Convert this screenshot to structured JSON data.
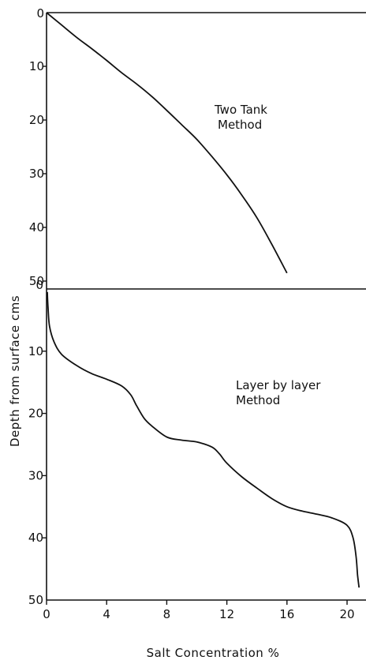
{
  "chart_data": [
    {
      "type": "line",
      "panel": "top",
      "annotation": [
        "Two Tank",
        "Method"
      ],
      "xlim": [
        0,
        21.5
      ],
      "ylim": [
        0,
        53
      ],
      "y_inverted": true,
      "yticks": [
        0,
        10,
        20,
        30,
        40,
        50
      ],
      "ytick_labels": [
        "0",
        "10",
        "20",
        "30",
        "40",
        "50"
      ],
      "series": [
        {
          "x": [
            0,
            1,
            2,
            3,
            4,
            5,
            6,
            7,
            8,
            9,
            10,
            11,
            12,
            13,
            14,
            15,
            16
          ],
          "y": [
            0,
            2.3,
            4.6,
            6.7,
            8.9,
            11.2,
            13.3,
            15.6,
            18.2,
            20.9,
            23.6,
            26.8,
            30.2,
            34.0,
            38.2,
            43.2,
            48.5
          ]
        }
      ]
    },
    {
      "type": "line",
      "panel": "bottom",
      "annotation": [
        "Layer by layer",
        "Method"
      ],
      "xlim": [
        0,
        21.5
      ],
      "ylim": [
        0,
        50
      ],
      "y_inverted": true,
      "yticks": [
        0,
        10,
        20,
        30,
        40,
        50
      ],
      "ytick_labels": [
        "0",
        "10",
        "20",
        "30",
        "40",
        "50"
      ],
      "xticks": [
        0,
        4,
        8,
        12,
        16,
        20
      ],
      "xtick_labels": [
        "0",
        "4",
        "8",
        "12",
        "16",
        "20"
      ],
      "xlabel": "Salt Concentration %",
      "series": [
        {
          "x": [
            0.05,
            0.1,
            0.2,
            0.5,
            1.0,
            2.0,
            3.0,
            4.0,
            5.0,
            5.6,
            6.0,
            6.5,
            7.0,
            8.0,
            9.0,
            10.0,
            11.0,
            11.5,
            12.0,
            13.0,
            14.0,
            15.0,
            16.0,
            17.0,
            18.0,
            19.0,
            20.0,
            20.4,
            20.6,
            20.7,
            20.8
          ],
          "y": [
            0.5,
            3,
            6,
            8.5,
            10.5,
            12.3,
            13.6,
            14.5,
            15.6,
            17.0,
            18.8,
            20.8,
            22.0,
            23.8,
            24.3,
            24.6,
            25.4,
            26.5,
            28.0,
            30.2,
            32.0,
            33.7,
            35.0,
            35.7,
            36.2,
            36.8,
            38.0,
            40.0,
            43.0,
            46.0,
            48.0
          ]
        }
      ]
    }
  ],
  "shared_ylabel": "Depth  from surface  cms"
}
